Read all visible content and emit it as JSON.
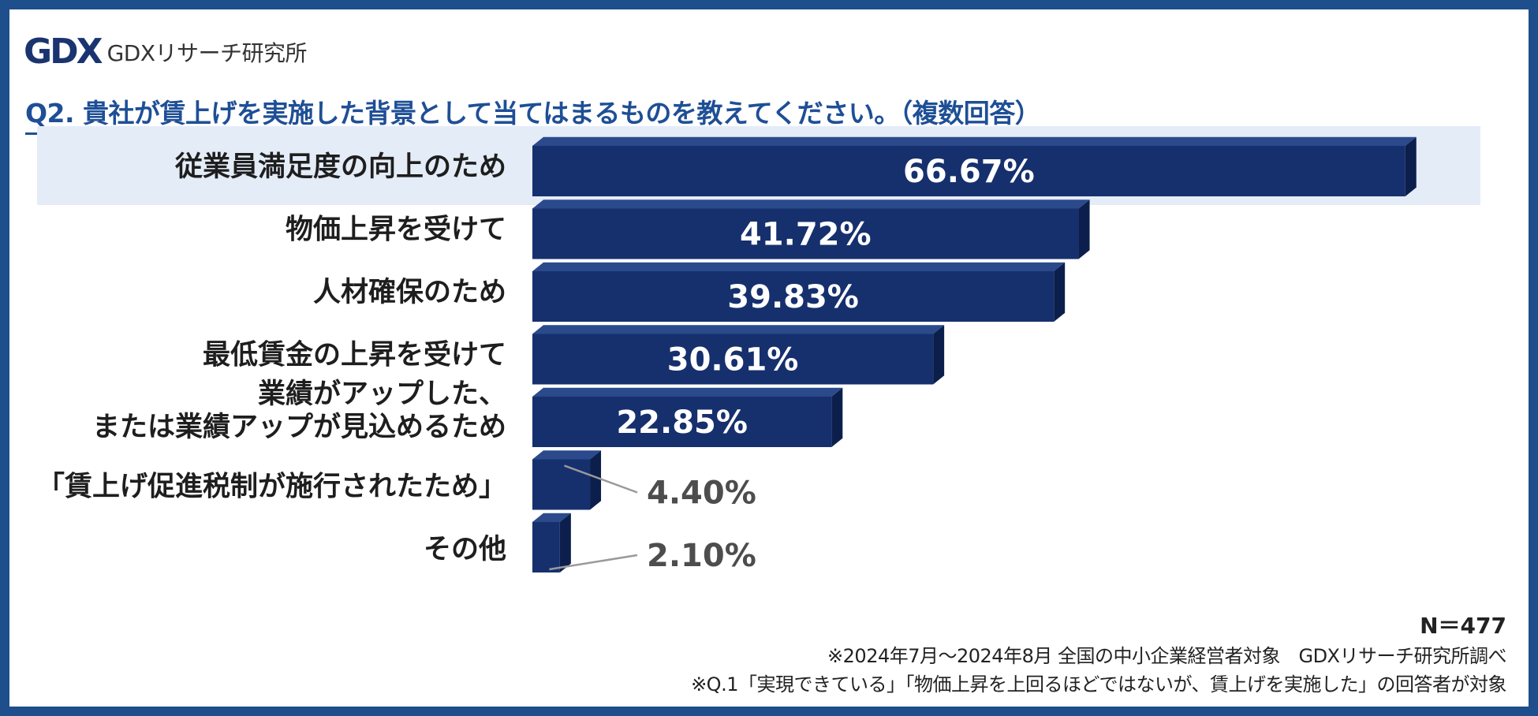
{
  "logo": {
    "mark": "GDX",
    "text": "GDXリサーチ研究所"
  },
  "question": "Q2. 貴社が賃上げを実施した背景として当てはまるものを教えてください。（複数回答）",
  "colors": {
    "frame": "#1f4e8c",
    "bar": "#16306e",
    "bar_top": "#2a4a8c",
    "bar_side": "#0c1f4c",
    "highlight": "#e4ecf8",
    "accent": "#1e4f96"
  },
  "chart_data": {
    "type": "bar",
    "orientation": "horizontal",
    "categories": [
      [
        "従業員満足度の向上のため"
      ],
      [
        "物価上昇を受けて"
      ],
      [
        "人材確保のため"
      ],
      [
        "最低賃金の上昇を受けて"
      ],
      [
        "業績がアップした、",
        "または業績アップが見込めるため"
      ],
      [
        "「賃上げ促進税制が施行されたため」"
      ],
      [
        "その他"
      ]
    ],
    "values": [
      66.67,
      41.72,
      39.83,
      30.61,
      22.85,
      4.4,
      2.1
    ],
    "value_labels": [
      "66.67%",
      "41.72%",
      "39.83%",
      "30.61%",
      "22.85%",
      "4.40%",
      "2.10%"
    ],
    "highlighted_index": 0
  },
  "footer": {
    "n": "N＝477",
    "note1": "※2024年7月～2024年8月 全国の中小企業経営者対象　GDXリサーチ研究所調べ",
    "note2": "※Q.1「実現できている」「物価上昇を上回るほどではないが、賃上げを実施した」の回答者が対象"
  }
}
